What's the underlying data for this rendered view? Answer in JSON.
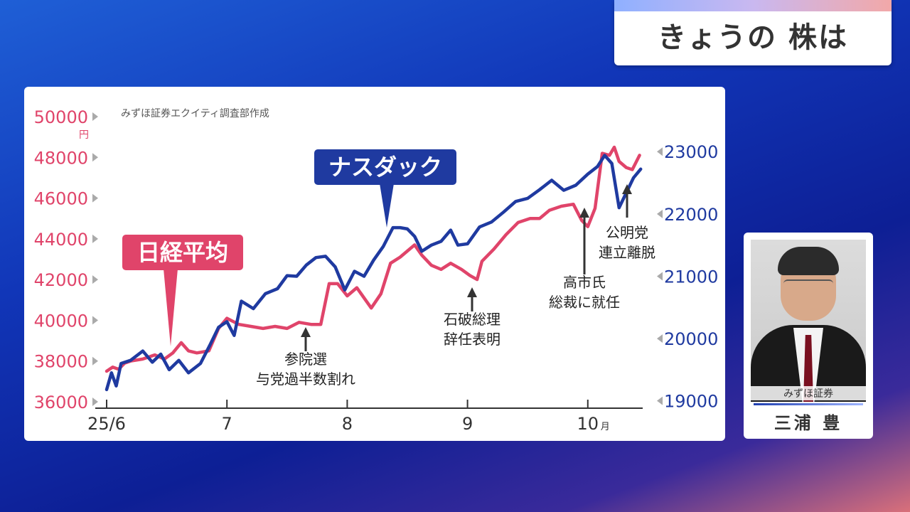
{
  "title": "きょうの 株は",
  "person": {
    "company": "みずほ証券",
    "name": "三浦 豊"
  },
  "chart_data": {
    "type": "line",
    "source_note": "みずほ証券エクイティ調査部作成",
    "x_labels": [
      "25/6",
      "7",
      "8",
      "9",
      "10"
    ],
    "x_last_unit": "月",
    "left_axis": {
      "unit": "円",
      "ticks": [
        36000,
        38000,
        40000,
        42000,
        44000,
        46000,
        48000,
        50000
      ],
      "range": [
        36000,
        50000
      ],
      "color": "#e0446a"
    },
    "right_axis": {
      "ticks": [
        19000,
        20000,
        21000,
        22000,
        23000
      ],
      "range": [
        18985,
        23562
      ],
      "color": "#1f3aa0"
    },
    "series": [
      {
        "name": "日経平均",
        "color": "#e0446a",
        "axis": "left",
        "values": [
          [
            0,
            37500
          ],
          [
            0.05,
            37700
          ],
          [
            0.1,
            37600
          ],
          [
            0.15,
            37900
          ],
          [
            0.2,
            38000
          ],
          [
            0.3,
            38100
          ],
          [
            0.4,
            38300
          ],
          [
            0.48,
            38100
          ],
          [
            0.55,
            38400
          ],
          [
            0.62,
            38900
          ],
          [
            0.68,
            38500
          ],
          [
            0.75,
            38400
          ],
          [
            0.85,
            38500
          ],
          [
            0.93,
            39600
          ],
          [
            1.0,
            40100
          ],
          [
            1.1,
            39800
          ],
          [
            1.2,
            39700
          ],
          [
            1.3,
            39600
          ],
          [
            1.4,
            39700
          ],
          [
            1.5,
            39600
          ],
          [
            1.6,
            39900
          ],
          [
            1.7,
            39800
          ],
          [
            1.78,
            39800
          ],
          [
            1.85,
            41800
          ],
          [
            1.92,
            41800
          ],
          [
            2.0,
            41200
          ],
          [
            2.08,
            41600
          ],
          [
            2.2,
            40600
          ],
          [
            2.28,
            41300
          ],
          [
            2.36,
            42800
          ],
          [
            2.44,
            43100
          ],
          [
            2.5,
            43400
          ],
          [
            2.56,
            43700
          ],
          [
            2.62,
            43200
          ],
          [
            2.7,
            42700
          ],
          [
            2.78,
            42500
          ],
          [
            2.86,
            42800
          ],
          [
            2.95,
            42500
          ],
          [
            3.02,
            42200
          ],
          [
            3.08,
            42000
          ],
          [
            3.12,
            42900
          ],
          [
            3.22,
            43500
          ],
          [
            3.32,
            44200
          ],
          [
            3.42,
            44800
          ],
          [
            3.52,
            45000
          ],
          [
            3.6,
            45000
          ],
          [
            3.68,
            45400
          ],
          [
            3.78,
            45600
          ],
          [
            3.88,
            45700
          ],
          [
            3.95,
            44900
          ],
          [
            4.0,
            44600
          ],
          [
            4.06,
            45500
          ],
          [
            4.12,
            48200
          ],
          [
            4.18,
            48100
          ],
          [
            4.22,
            48500
          ],
          [
            4.26,
            47800
          ],
          [
            4.32,
            47500
          ],
          [
            4.37,
            47400
          ],
          [
            4.43,
            48100
          ]
        ]
      },
      {
        "name": "ナスダック",
        "color": "#1f3aa0",
        "axis": "right",
        "values": [
          [
            0,
            19180
          ],
          [
            0.04,
            19450
          ],
          [
            0.08,
            19240
          ],
          [
            0.12,
            19600
          ],
          [
            0.2,
            19650
          ],
          [
            0.3,
            19800
          ],
          [
            0.38,
            19620
          ],
          [
            0.45,
            19750
          ],
          [
            0.52,
            19500
          ],
          [
            0.6,
            19650
          ],
          [
            0.68,
            19450
          ],
          [
            0.78,
            19600
          ],
          [
            0.86,
            19900
          ],
          [
            0.93,
            20180
          ],
          [
            1.0,
            20270
          ],
          [
            1.06,
            20050
          ],
          [
            1.12,
            20600
          ],
          [
            1.22,
            20480
          ],
          [
            1.32,
            20720
          ],
          [
            1.42,
            20800
          ],
          [
            1.5,
            21010
          ],
          [
            1.58,
            21000
          ],
          [
            1.66,
            21180
          ],
          [
            1.74,
            21300
          ],
          [
            1.82,
            21320
          ],
          [
            1.9,
            21150
          ],
          [
            1.98,
            20780
          ],
          [
            2.06,
            21080
          ],
          [
            2.14,
            21000
          ],
          [
            2.22,
            21260
          ],
          [
            2.3,
            21480
          ],
          [
            2.38,
            21780
          ],
          [
            2.44,
            21780
          ],
          [
            2.5,
            21760
          ],
          [
            2.56,
            21640
          ],
          [
            2.62,
            21400
          ],
          [
            2.7,
            21500
          ],
          [
            2.78,
            21560
          ],
          [
            2.86,
            21740
          ],
          [
            2.92,
            21500
          ],
          [
            3.0,
            21520
          ],
          [
            3.1,
            21790
          ],
          [
            3.2,
            21870
          ],
          [
            3.3,
            22030
          ],
          [
            3.4,
            22200
          ],
          [
            3.5,
            22250
          ],
          [
            3.6,
            22390
          ],
          [
            3.7,
            22540
          ],
          [
            3.8,
            22380
          ],
          [
            3.9,
            22460
          ],
          [
            4.0,
            22640
          ],
          [
            4.08,
            22760
          ],
          [
            4.14,
            22940
          ],
          [
            4.2,
            22810
          ],
          [
            4.26,
            22100
          ],
          [
            4.32,
            22340
          ],
          [
            4.38,
            22580
          ],
          [
            4.44,
            22720
          ]
        ]
      }
    ],
    "annotations": [
      {
        "lines": [
          "参院選",
          "与党過半数割れ"
        ]
      },
      {
        "lines": [
          "石破総理",
          "辞任表明"
        ]
      },
      {
        "lines": [
          "高市氏",
          "総裁に就任"
        ]
      },
      {
        "lines": [
          "公明党",
          "連立離脱"
        ]
      }
    ]
  }
}
